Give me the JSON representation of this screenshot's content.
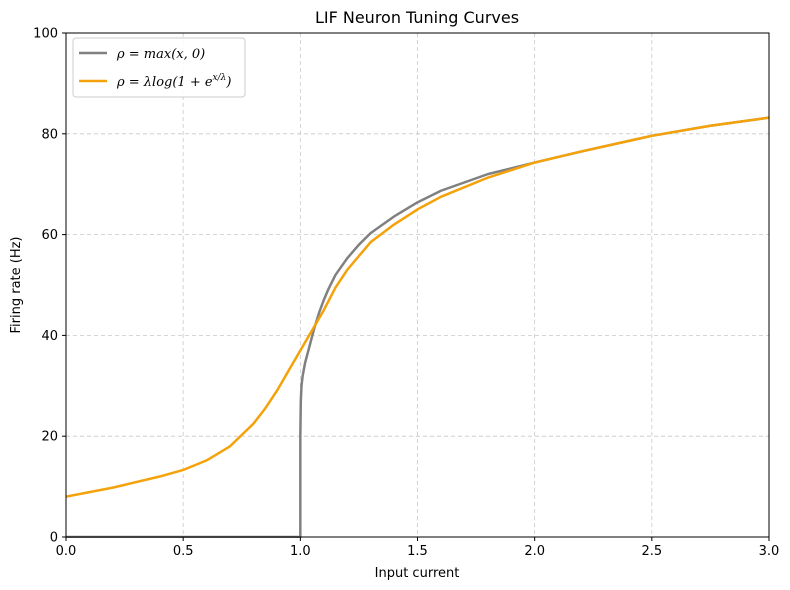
{
  "chart_data": {
    "type": "line",
    "title": "LIF Neuron Tuning Curves",
    "xlabel": "Input current",
    "ylabel": "Firing rate (Hz)",
    "xlim": [
      0,
      3.0
    ],
    "ylim": [
      0,
      100
    ],
    "x_ticks": [
      "0.0",
      "0.5",
      "1.0",
      "1.5",
      "2.0",
      "2.5",
      "3.0"
    ],
    "y_ticks": [
      "0",
      "20",
      "40",
      "60",
      "80",
      "100"
    ],
    "grid": true,
    "legend_position": "top-left",
    "series": [
      {
        "name": "ρ = max(x, 0)",
        "color": "#808080",
        "points": [
          [
            0.0,
            0
          ],
          [
            0.5,
            0
          ],
          [
            0.9999,
            0
          ],
          [
            1.0,
            0
          ],
          [
            1.0,
            20
          ],
          [
            1.002,
            27
          ],
          [
            1.005,
            30
          ],
          [
            1.01,
            32
          ],
          [
            1.02,
            34.5
          ],
          [
            1.04,
            38
          ],
          [
            1.06,
            41.5
          ],
          [
            1.08,
            44.5
          ],
          [
            1.1,
            47
          ],
          [
            1.12,
            49.2
          ],
          [
            1.15,
            52
          ],
          [
            1.2,
            55.3
          ],
          [
            1.25,
            58
          ],
          [
            1.3,
            60.3
          ],
          [
            1.4,
            63.6
          ],
          [
            1.5,
            66.4
          ],
          [
            1.6,
            68.7
          ],
          [
            1.8,
            72
          ],
          [
            2.0,
            74.3
          ],
          [
            2.2,
            76.5
          ],
          [
            2.5,
            79.6
          ],
          [
            2.75,
            81.6
          ],
          [
            3.0,
            83.2
          ]
        ]
      },
      {
        "name": "ρ = λlog(1 + e^(x/λ))",
        "color": "#f5a20a",
        "points": [
          [
            0.0,
            8
          ],
          [
            0.2,
            9.8
          ],
          [
            0.4,
            12
          ],
          [
            0.5,
            13.3
          ],
          [
            0.6,
            15.2
          ],
          [
            0.7,
            18
          ],
          [
            0.8,
            22.5
          ],
          [
            0.85,
            25.5
          ],
          [
            0.9,
            29
          ],
          [
            0.95,
            33
          ],
          [
            1.0,
            37
          ],
          [
            1.05,
            41
          ],
          [
            1.1,
            45
          ],
          [
            1.15,
            49.5
          ],
          [
            1.2,
            53
          ],
          [
            1.3,
            58.5
          ],
          [
            1.4,
            62
          ],
          [
            1.5,
            65
          ],
          [
            1.6,
            67.5
          ],
          [
            1.8,
            71.3
          ],
          [
            2.0,
            74.3
          ],
          [
            2.2,
            76.5
          ],
          [
            2.5,
            79.6
          ],
          [
            2.75,
            81.6
          ],
          [
            3.0,
            83.2
          ]
        ]
      }
    ]
  },
  "legend": {
    "items": [
      {
        "prefix": "ρ = max(",
        "var": "x",
        "suffix": ", 0)"
      },
      {
        "prefix": "ρ = λlog(1 + e",
        "sup": "x/λ",
        "suffix": ")"
      }
    ]
  }
}
